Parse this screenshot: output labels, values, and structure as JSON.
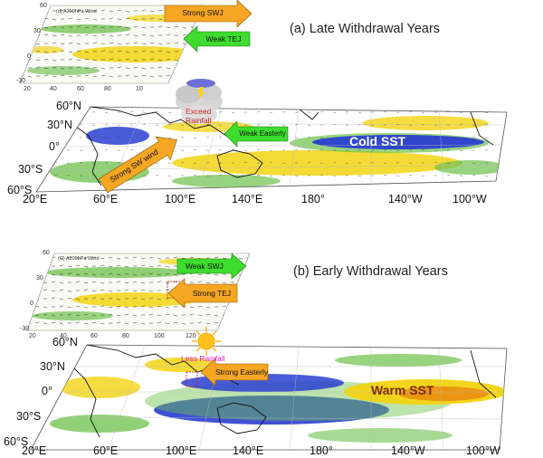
{
  "colors": {
    "positive_anomaly": "#f2d312",
    "negative_anomaly_light": "#6cc04a",
    "negative_anomaly_dark": "#2a3fd0",
    "arrow_orange": "#f5a623",
    "arrow_green": "#3ddc2e",
    "rain_text": "#cc1f1f",
    "less_rain_text": "#e020c8",
    "sun": "#ffb300"
  },
  "panel_a": {
    "title": "(a) Late Withdrawal Years",
    "inset_label": "(d) A200hPa Wind",
    "inset_y_ticks": [
      "60",
      "30",
      "0",
      "-30"
    ],
    "inset_x_ticks": [
      "20",
      "40",
      "60",
      "80",
      "10"
    ],
    "arrows": {
      "swj": "Strong SWJ",
      "tej": "Weak TEJ",
      "easterly": "Weak Easterly",
      "sw_wind": "Strong SW wind"
    },
    "rain_label": [
      "Exceed",
      "Rainfall"
    ],
    "sst_label": "Cold SST",
    "lat_ticks": [
      "60°N",
      "30°N",
      "0°",
      "30°S",
      "60°S"
    ],
    "lon_ticks": [
      "20°E",
      "60°E",
      "100°E",
      "140°E",
      "180°",
      "140°W",
      "100°W"
    ]
  },
  "panel_b": {
    "title": "(b) Early Withdrawal Years",
    "inset_label": "(C) A200hPa Wind",
    "inset_y_ticks": [
      "60",
      "30",
      "0",
      "-30"
    ],
    "inset_x_ticks": [
      "20",
      "40",
      "60",
      "80",
      "100",
      "120"
    ],
    "arrows": {
      "swj": "Weak SWJ",
      "tej": "Strong TEJ",
      "easterly": "Strong Easterly"
    },
    "rain_label": "Less Rainfall",
    "sst_label": "Warm SST",
    "lat_ticks": [
      "60°N",
      "30°N",
      "0°",
      "30°S",
      "60°S"
    ],
    "lon_ticks": [
      "20°E",
      "60°E",
      "100°E",
      "140°E",
      "180°",
      "140°W",
      "100°W"
    ]
  }
}
